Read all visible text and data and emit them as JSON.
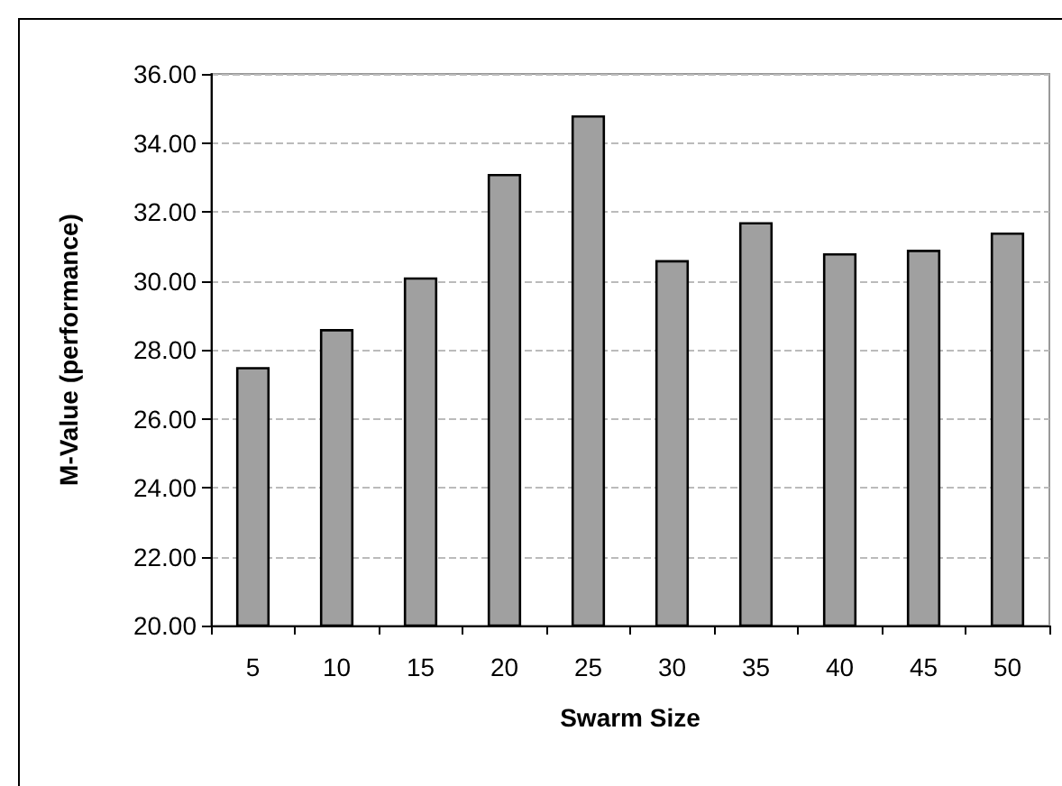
{
  "chart_data": {
    "type": "bar",
    "xlabel": "Swarm Size",
    "ylabel": "M-Value (performance)",
    "categories": [
      "5",
      "10",
      "15",
      "20",
      "25",
      "30",
      "35",
      "40",
      "45",
      "50"
    ],
    "values": [
      27.5,
      28.6,
      30.1,
      33.1,
      34.8,
      30.6,
      31.7,
      30.8,
      30.9,
      31.4
    ],
    "color": "#a0a0a0",
    "ylim": [
      20,
      36
    ],
    "yticks": [
      {
        "value": 20,
        "label": "20.00"
      },
      {
        "value": 22,
        "label": "22.00"
      },
      {
        "value": 24,
        "label": "24.00"
      },
      {
        "value": 26,
        "label": "26.00"
      },
      {
        "value": 28,
        "label": "28.00"
      },
      {
        "value": 30,
        "label": "30.00"
      },
      {
        "value": 32,
        "label": "32.00"
      },
      {
        "value": 34,
        "label": "34.00"
      },
      {
        "value": 36,
        "label": "36.00"
      }
    ],
    "grid": "y",
    "line_style": "dashed"
  }
}
